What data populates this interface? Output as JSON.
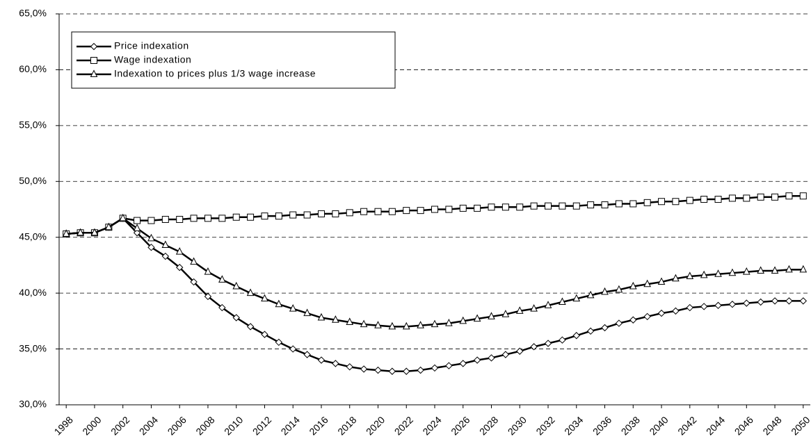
{
  "chart_data": {
    "type": "line",
    "x": [
      1998,
      1999,
      2000,
      2001,
      2002,
      2003,
      2004,
      2005,
      2006,
      2007,
      2008,
      2009,
      2010,
      2011,
      2012,
      2013,
      2014,
      2015,
      2016,
      2017,
      2018,
      2019,
      2020,
      2021,
      2022,
      2023,
      2024,
      2025,
      2026,
      2027,
      2028,
      2029,
      2030,
      2031,
      2032,
      2033,
      2034,
      2035,
      2036,
      2037,
      2038,
      2039,
      2040,
      2041,
      2042,
      2043,
      2044,
      2045,
      2046,
      2047,
      2048,
      2049,
      2050
    ],
    "xlim": [
      1997.5,
      2050.5
    ],
    "xticks": [
      1998,
      2000,
      2002,
      2004,
      2006,
      2008,
      2010,
      2012,
      2014,
      2016,
      2018,
      2020,
      2022,
      2024,
      2026,
      2028,
      2030,
      2032,
      2034,
      2036,
      2038,
      2040,
      2042,
      2044,
      2046,
      2048,
      2050
    ],
    "ylim": [
      30,
      65
    ],
    "yticks": [
      {
        "value": 30,
        "label": "30,0%"
      },
      {
        "value": 35,
        "label": "35,0%"
      },
      {
        "value": 40,
        "label": "40,0%"
      },
      {
        "value": 45,
        "label": "45,0%"
      },
      {
        "value": 50,
        "label": "50,0%"
      },
      {
        "value": 55,
        "label": "55,0%"
      },
      {
        "value": 60,
        "label": "60,0%"
      },
      {
        "value": 65,
        "label": "65,0%"
      }
    ],
    "grid": true,
    "legend": "top-left",
    "series": [
      {
        "name": "Price indexation",
        "color": "#000000",
        "marker": "diamond",
        "values": [
          45.3,
          45.4,
          45.4,
          45.9,
          46.7,
          45.4,
          44.1,
          43.3,
          42.3,
          41.0,
          39.7,
          38.7,
          37.8,
          37.0,
          36.3,
          35.6,
          35.0,
          34.5,
          34.0,
          33.7,
          33.4,
          33.2,
          33.1,
          33.0,
          33.0,
          33.1,
          33.3,
          33.5,
          33.7,
          34.0,
          34.2,
          34.5,
          34.8,
          35.2,
          35.5,
          35.8,
          36.2,
          36.6,
          36.9,
          37.3,
          37.6,
          37.9,
          38.2,
          38.4,
          38.7,
          38.8,
          38.9,
          39.0,
          39.1,
          39.2,
          39.3,
          39.3,
          39.3
        ]
      },
      {
        "name": "Wage indexation",
        "color": "#000000",
        "marker": "square",
        "values": [
          45.3,
          45.4,
          45.4,
          45.9,
          46.7,
          46.5,
          46.5,
          46.6,
          46.6,
          46.7,
          46.7,
          46.7,
          46.8,
          46.8,
          46.9,
          46.9,
          47.0,
          47.0,
          47.1,
          47.1,
          47.2,
          47.3,
          47.3,
          47.3,
          47.4,
          47.4,
          47.5,
          47.5,
          47.6,
          47.6,
          47.7,
          47.7,
          47.7,
          47.8,
          47.8,
          47.8,
          47.8,
          47.9,
          47.9,
          48.0,
          48.0,
          48.1,
          48.2,
          48.2,
          48.3,
          48.4,
          48.4,
          48.5,
          48.5,
          48.6,
          48.6,
          48.7,
          48.7
        ]
      },
      {
        "name": "Indexation to prices plus 1/3 wage increase",
        "color": "#000000",
        "marker": "triangle",
        "values": [
          45.3,
          45.4,
          45.4,
          45.9,
          46.7,
          45.8,
          44.9,
          44.3,
          43.7,
          42.8,
          41.9,
          41.2,
          40.6,
          40.0,
          39.5,
          39.0,
          38.6,
          38.2,
          37.8,
          37.6,
          37.4,
          37.2,
          37.1,
          37.0,
          37.0,
          37.1,
          37.2,
          37.3,
          37.5,
          37.7,
          37.9,
          38.1,
          38.4,
          38.6,
          38.9,
          39.2,
          39.5,
          39.8,
          40.1,
          40.3,
          40.6,
          40.8,
          41.0,
          41.3,
          41.5,
          41.6,
          41.7,
          41.8,
          41.9,
          42.0,
          42.0,
          42.1,
          42.1
        ]
      }
    ]
  }
}
